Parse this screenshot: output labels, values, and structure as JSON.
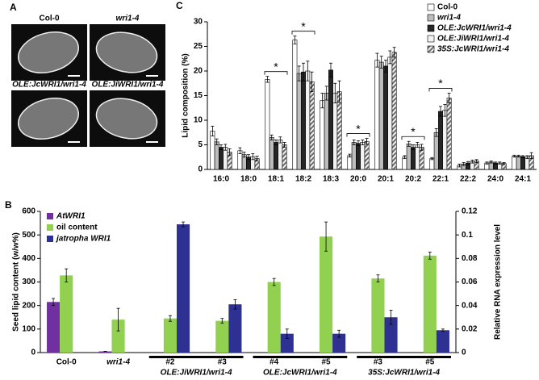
{
  "panel_labels": [
    "A",
    "B",
    "C"
  ],
  "images": [
    {
      "label": "Col-0"
    },
    {
      "label": "wri1-4"
    },
    {
      "label": "OLE:JcWRI1/wri1-4"
    },
    {
      "label": "OLE:JiWRI1/wri1-4"
    }
  ],
  "chart_data": [
    {
      "type": "bar",
      "ylabel": "Lipid composition (%)",
      "categories": [
        "16:0",
        "18:0",
        "18:1",
        "18:2",
        "18:3",
        "20:0",
        "20:1",
        "20:2",
        "22:1",
        "22:2",
        "24:0",
        "24:1"
      ],
      "ylim": [
        0,
        30
      ],
      "yticks": [
        0,
        5,
        10,
        15,
        20,
        25,
        30
      ],
      "legend": "top-right",
      "series": [
        {
          "name": "Col-0",
          "color": "#ffffff",
          "values": [
            7.8,
            3.8,
            18.3,
            26.3,
            14.0,
            2.8,
            22.2,
            2.5,
            2.2,
            0.8,
            1.3,
            2.7
          ],
          "errors": [
            1.0,
            0.6,
            0.6,
            0.8,
            1.5,
            0.3,
            1.4,
            0.3,
            0.2,
            0.3,
            0.2,
            0.2
          ]
        },
        {
          "name": "wri1-4",
          "color": "#bdbdbd",
          "values": [
            5.6,
            3.0,
            6.5,
            19.5,
            15.5,
            5.5,
            21.8,
            5.2,
            7.5,
            1.1,
            1.5,
            2.7
          ],
          "errors": [
            0.6,
            0.5,
            0.5,
            1.5,
            1.4,
            0.5,
            1.2,
            0.5,
            0.8,
            0.3,
            0.2,
            0.2
          ]
        },
        {
          "name": "OLE:JcWRI1/wri1-4",
          "color": "#262626",
          "values": [
            4.5,
            2.5,
            5.5,
            19.8,
            20.2,
            5.3,
            21.0,
            4.5,
            11.8,
            1.3,
            1.3,
            2.6
          ],
          "errors": [
            0.5,
            0.5,
            0.5,
            1.8,
            1.4,
            0.5,
            1.2,
            0.5,
            1.0,
            0.3,
            0.2,
            0.2
          ]
        },
        {
          "name": "OLE:JiWRI1/wri1-4",
          "color": "#f2f2f2",
          "values": [
            4.5,
            2.6,
            6.0,
            20.0,
            15.5,
            5.5,
            22.8,
            5.0,
            12.0,
            1.6,
            1.3,
            2.5
          ],
          "errors": [
            0.6,
            0.6,
            0.6,
            2.0,
            2.0,
            0.5,
            1.3,
            0.5,
            1.2,
            0.3,
            0.2,
            0.3
          ]
        },
        {
          "name": "35S:JcWRI1/wri1-4",
          "color": "#6f6f6f",
          "pattern": "hatched",
          "values": [
            3.5,
            2.2,
            5.0,
            17.8,
            15.8,
            5.7,
            23.8,
            4.5,
            14.5,
            1.7,
            1.2,
            2.8
          ],
          "errors": [
            0.7,
            0.5,
            0.5,
            2.0,
            2.2,
            0.6,
            1.0,
            0.6,
            1.0,
            0.3,
            0.2,
            0.6
          ]
        }
      ],
      "annotations": [
        {
          "text": "*",
          "category": "18:1"
        },
        {
          "text": "*",
          "category": "18:2"
        },
        {
          "text": "*",
          "category": "20:0"
        },
        {
          "text": "*",
          "category": "20:2"
        },
        {
          "text": "*",
          "category": "22:1"
        }
      ]
    },
    {
      "type": "bar",
      "ylabel": "Seed lipid content (w/w%)",
      "y2label": "Relative RNA expression level",
      "categories": [
        "Col-0",
        "wri1-4",
        "#2",
        "#3",
        "#4",
        "#5",
        "#3",
        "#5"
      ],
      "groups": [
        {
          "label": "OLE:JiWRI1/wri1-4",
          "from": 2,
          "to": 3
        },
        {
          "label": "OLE:JcWRI1/wri1-4",
          "from": 4,
          "to": 5
        },
        {
          "label": "35S:JcWRI1/wri1-4",
          "from": 6,
          "to": 7
        }
      ],
      "ylim": [
        0,
        600
      ],
      "yticks": [
        0,
        100,
        200,
        300,
        400,
        500,
        600
      ],
      "y2lim": [
        0,
        0.12
      ],
      "y2ticks": [
        0,
        0.02,
        0.04,
        0.06,
        0.08,
        0.1,
        0.12
      ],
      "legend": "top-left",
      "series": [
        {
          "name": "AtWRI1",
          "color": "#7030a0",
          "axis": "y2",
          "values": [
            0.043,
            0.001,
            0,
            0,
            0,
            0,
            0,
            0
          ],
          "errors": [
            0.003,
            0,
            0,
            0,
            0,
            0,
            0,
            0
          ]
        },
        {
          "name": "oil content",
          "color": "#92d050",
          "values": [
            328,
            140,
            145,
            135,
            300,
            493,
            315,
            412
          ],
          "errors": [
            28,
            48,
            12,
            10,
            15,
            62,
            15,
            15
          ]
        },
        {
          "name": "jatropha WRI1",
          "color": "#2e3192",
          "axis": "y2",
          "values": [
            0,
            0,
            0.109,
            0.041,
            0.016,
            0.016,
            0.03,
            0.019
          ],
          "errors": [
            0,
            0,
            0.002,
            0.004,
            0.004,
            0.003,
            0.006,
            0.001
          ]
        }
      ]
    }
  ]
}
